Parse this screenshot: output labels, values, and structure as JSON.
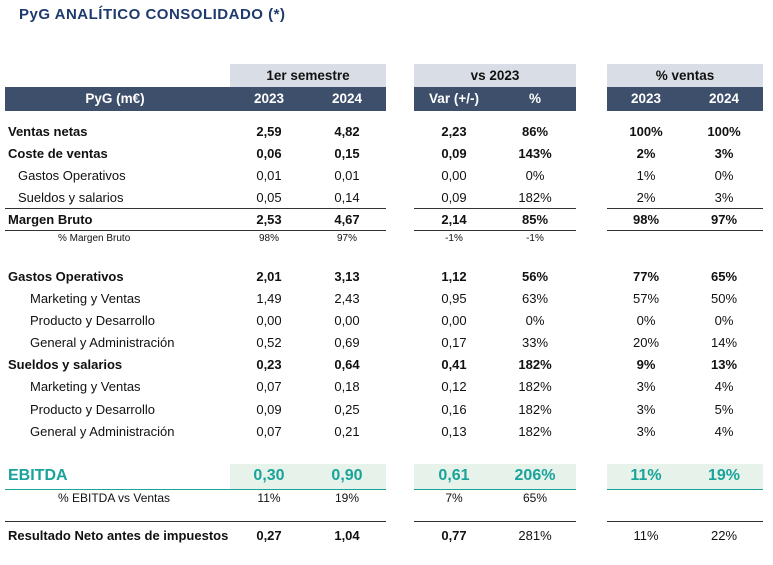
{
  "title": "PyG ANALÍTICO CONSOLIDADO (*)",
  "groups": {
    "semestre": "1er semestre",
    "vs": "vs 2023",
    "ventas": "% ventas"
  },
  "header": {
    "label": "PyG (m€)",
    "c1": "2023",
    "c2": "2024",
    "c3": "Var (+/-)",
    "c4": "%",
    "c5": "2023",
    "c6": "2024"
  },
  "rows": [
    {
      "label": "Ventas netas",
      "v": [
        "2,59",
        "4,82",
        "2,23",
        "86%",
        "100%",
        "100%"
      ]
    },
    {
      "label": "Coste de ventas",
      "v": [
        "0,06",
        "0,15",
        "0,09",
        "143%",
        "2%",
        "3%"
      ]
    },
    {
      "label": "Gastos Operativos",
      "v": [
        "0,01",
        "0,01",
        "0,00",
        "0%",
        "1%",
        "0%"
      ]
    },
    {
      "label": "Sueldos y salarios",
      "v": [
        "0,05",
        "0,14",
        "0,09",
        "182%",
        "2%",
        "3%"
      ]
    },
    {
      "label": "Margen Bruto",
      "v": [
        "2,53",
        "4,67",
        "2,14",
        "85%",
        "98%",
        "97%"
      ]
    },
    {
      "label": "% Margen Bruto",
      "v": [
        "98%",
        "97%",
        "-1%",
        "-1%"
      ]
    },
    {
      "label": "Gastos Operativos",
      "v": [
        "2,01",
        "3,13",
        "1,12",
        "56%",
        "77%",
        "65%"
      ]
    },
    {
      "label": "Marketing y Ventas",
      "v": [
        "1,49",
        "2,43",
        "0,95",
        "63%",
        "57%",
        "50%"
      ]
    },
    {
      "label": "Producto y Desarrollo",
      "v": [
        "0,00",
        "0,00",
        "0,00",
        "0%",
        "0%",
        "0%"
      ]
    },
    {
      "label": "General y Administración",
      "v": [
        "0,52",
        "0,69",
        "0,17",
        "33%",
        "20%",
        "14%"
      ]
    },
    {
      "label": "Sueldos y salarios",
      "v": [
        "0,23",
        "0,64",
        "0,41",
        "182%",
        "9%",
        "13%"
      ]
    },
    {
      "label": "Marketing y Ventas",
      "v": [
        "0,07",
        "0,18",
        "0,12",
        "182%",
        "3%",
        "4%"
      ]
    },
    {
      "label": "Producto y Desarrollo",
      "v": [
        "0,09",
        "0,25",
        "0,16",
        "182%",
        "3%",
        "5%"
      ]
    },
    {
      "label": "General y Administración",
      "v": [
        "0,07",
        "0,21",
        "0,13",
        "182%",
        "3%",
        "4%"
      ]
    },
    {
      "label": "EBITDA",
      "v": [
        "0,30",
        "0,90",
        "0,61",
        "206%",
        "11%",
        "19%"
      ]
    },
    {
      "label": "% EBITDA vs Ventas",
      "v": [
        "11%",
        "19%",
        "7%",
        "65%"
      ]
    },
    {
      "label": "Resultado Neto antes de impuestos",
      "v": [
        "0,27",
        "1,04",
        "0,77",
        "281%",
        "11%",
        "22%"
      ]
    }
  ],
  "colors": {
    "header_bg": "#3d4f6b",
    "group_bg": "#d9dee6",
    "ebitda": "#1aa39a",
    "title": "#1f3a6e"
  }
}
